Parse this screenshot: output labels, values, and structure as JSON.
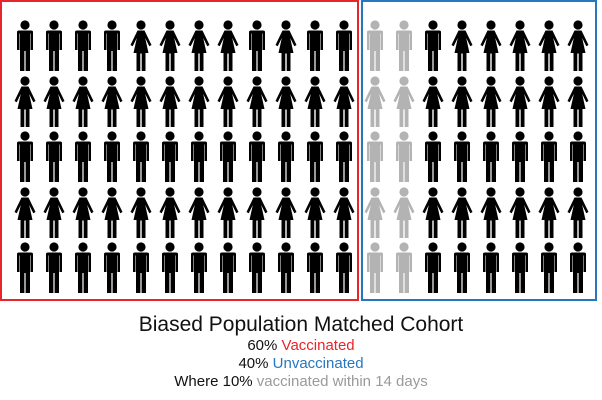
{
  "colors": {
    "vaccinated": "#e8252b",
    "unvaccinated": "#2677c0",
    "recent": "#b3b3b3",
    "figure": "#000000",
    "recent_text": "#9a9a9a"
  },
  "caption": {
    "title": "Biased Population Matched Cohort",
    "line1_pct": "60%",
    "line1_label": "Vaccinated",
    "line2_pct": "40%",
    "line2_label": "Unvaccinated",
    "line3_prefix": "Where 10%",
    "line3_label": "vaccinated within 14 days"
  },
  "groups": {
    "vaccinated": {
      "label": "Vaccinated",
      "rows": [
        [
          "M",
          "M",
          "M",
          "M",
          "W",
          "W",
          "W",
          "W",
          "M",
          "W",
          "M",
          "M"
        ],
        [
          "W",
          "W",
          "W",
          "W",
          "W",
          "W",
          "W",
          "W",
          "W",
          "W",
          "W",
          "W"
        ],
        [
          "M",
          "M",
          "M",
          "M",
          "M",
          "M",
          "M",
          "M",
          "M",
          "M",
          "M",
          "M"
        ],
        [
          "W",
          "W",
          "W",
          "W",
          "W",
          "W",
          "W",
          "W",
          "W",
          "W",
          "W",
          "W"
        ],
        [
          "M",
          "M",
          "M",
          "M",
          "M",
          "M",
          "M",
          "M",
          "M",
          "M",
          "M",
          "M"
        ]
      ]
    },
    "unvaccinated": {
      "label": "Unvaccinated",
      "rows": [
        [
          "gM",
          "gM",
          "M",
          "W",
          "W",
          "W",
          "W",
          "W"
        ],
        [
          "gW",
          "gW",
          "W",
          "W",
          "W",
          "W",
          "W",
          "W"
        ],
        [
          "gM",
          "gM",
          "M",
          "M",
          "M",
          "M",
          "M",
          "M"
        ],
        [
          "gW",
          "gW",
          "W",
          "W",
          "W",
          "W",
          "W",
          "W"
        ],
        [
          "gM",
          "gM",
          "M",
          "M",
          "M",
          "M",
          "M",
          "M"
        ]
      ]
    }
  },
  "chart_data": {
    "type": "pictogram",
    "title": "Biased Population Matched Cohort",
    "total_figures": 100,
    "categories": [
      "Vaccinated",
      "Unvaccinated (vaccinated within 14 days)",
      "Unvaccinated"
    ],
    "values": [
      60,
      10,
      30
    ],
    "annotations": [
      "60% Vaccinated",
      "40% Unvaccinated",
      "Where 10% vaccinated within 14 days"
    ]
  }
}
